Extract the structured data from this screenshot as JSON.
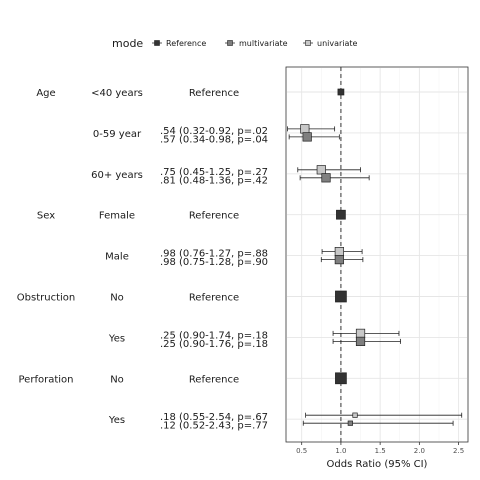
{
  "chart_data": {
    "type": "scatter",
    "subtype": "forest-plot",
    "xlabel": "Odds Ratio (95% CI)",
    "x_ticks": [
      "0.5",
      "1.0",
      "1.5",
      "2.0",
      "2.5"
    ],
    "x_tick_values": [
      0.5,
      1.0,
      1.5,
      2.0,
      2.5
    ],
    "xlim": [
      0.3,
      2.62
    ],
    "reference_line": 1.0,
    "reference_line_style": "dashed",
    "grid": true,
    "legend": {
      "title": "mode",
      "position": "top",
      "entries": [
        {
          "label": "Reference",
          "color": "#333333"
        },
        {
          "label": "multivariate",
          "color": "#7f7f7f"
        },
        {
          "label": "univariate",
          "color": "#c8c8c8"
        }
      ]
    },
    "rows": [
      {
        "variable": "Age",
        "level": "<40 years",
        "text": [
          "Reference"
        ],
        "points": [
          {
            "mode": "Reference",
            "or": 1.0,
            "size": "small"
          }
        ]
      },
      {
        "variable": "",
        "level": "0-59 year",
        "text": [
          ".54 (0.32-0.92, p=.02",
          ".57 (0.34-0.98, p=.04"
        ],
        "points": [
          {
            "mode": "univariate",
            "or": 0.54,
            "lo": 0.32,
            "hi": 0.92
          },
          {
            "mode": "multivariate",
            "or": 0.57,
            "lo": 0.34,
            "hi": 0.98
          }
        ]
      },
      {
        "variable": "",
        "level": "60+ years",
        "text": [
          ".75 (0.45-1.25, p=.27",
          ".81 (0.48-1.36, p=.42"
        ],
        "points": [
          {
            "mode": "univariate",
            "or": 0.75,
            "lo": 0.45,
            "hi": 1.25
          },
          {
            "mode": "multivariate",
            "or": 0.81,
            "lo": 0.48,
            "hi": 1.36
          }
        ]
      },
      {
        "variable": "Sex",
        "level": "Female",
        "text": [
          "Reference"
        ],
        "points": [
          {
            "mode": "Reference",
            "or": 1.0,
            "size": "medium"
          }
        ]
      },
      {
        "variable": "",
        "level": "Male",
        "text": [
          ".98 (0.76-1.27, p=.88",
          ".98 (0.75-1.28, p=.90"
        ],
        "points": [
          {
            "mode": "univariate",
            "or": 0.98,
            "lo": 0.76,
            "hi": 1.27
          },
          {
            "mode": "multivariate",
            "or": 0.98,
            "lo": 0.75,
            "hi": 1.28
          }
        ]
      },
      {
        "variable": "Obstruction",
        "level": "No",
        "text": [
          "Reference"
        ],
        "points": [
          {
            "mode": "Reference",
            "or": 1.0,
            "size": "large"
          }
        ]
      },
      {
        "variable": "",
        "level": "Yes",
        "text": [
          ".25 (0.90-1.74, p=.18",
          ".25 (0.90-1.76, p=.18"
        ],
        "points": [
          {
            "mode": "univariate",
            "or": 1.25,
            "lo": 0.9,
            "hi": 1.74
          },
          {
            "mode": "multivariate",
            "or": 1.25,
            "lo": 0.9,
            "hi": 1.76
          }
        ]
      },
      {
        "variable": "Perforation",
        "level": "No",
        "text": [
          "Reference"
        ],
        "points": [
          {
            "mode": "Reference",
            "or": 1.0,
            "size": "large"
          }
        ]
      },
      {
        "variable": "",
        "level": "Yes",
        "text": [
          ".18 (0.55-2.54, p=.67",
          ".12 (0.52-2.43, p=.77"
        ],
        "points": [
          {
            "mode": "univariate",
            "or": 1.18,
            "lo": 0.55,
            "hi": 2.54
          },
          {
            "mode": "multivariate",
            "or": 1.12,
            "lo": 0.52,
            "hi": 2.43
          }
        ]
      }
    ]
  }
}
